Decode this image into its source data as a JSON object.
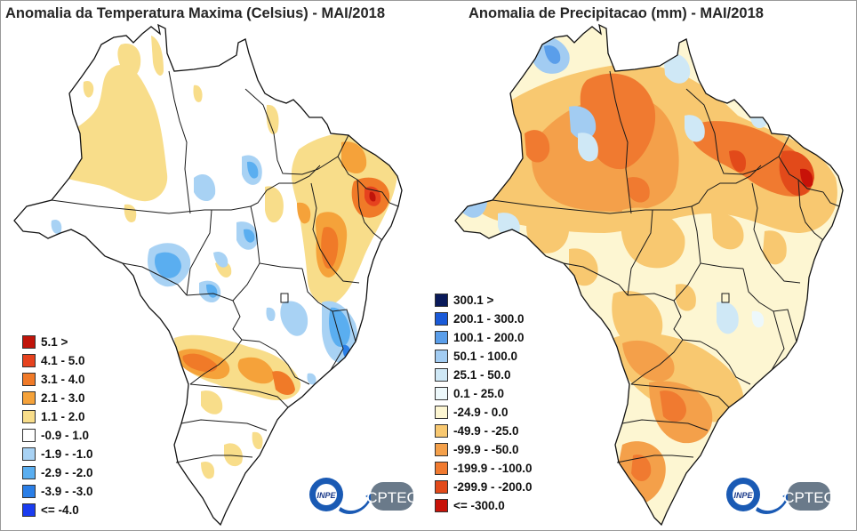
{
  "panels": [
    {
      "title": "Anomalia da Temperatura Maxima (Celsius) - MAI/2018",
      "legend": [
        {
          "label": "5.1 >",
          "color": "#c0140a"
        },
        {
          "label": "4.1 - 5.0",
          "color": "#e6421e"
        },
        {
          "label": "3.1 - 4.0",
          "color": "#f07a28"
        },
        {
          "label": "2.1 - 3.0",
          "color": "#f5a23a"
        },
        {
          "label": "1.1 - 2.0",
          "color": "#f8dd8a"
        },
        {
          "label": "-0.9 - 1.0",
          "color": "#ffffff"
        },
        {
          "label": "-1.9 - -1.0",
          "color": "#a8d2f4"
        },
        {
          "label": "-2.9 - -2.0",
          "color": "#5aaef0"
        },
        {
          "label": "-3.9 - -3.0",
          "color": "#2a7ee6"
        },
        {
          "label": "<= -4.0",
          "color": "#1a3cf0"
        }
      ]
    },
    {
      "title": "Anomalia de Precipitacao (mm) - MAI/2018",
      "legend": [
        {
          "label": "300.1 >",
          "color": "#0a1a5a"
        },
        {
          "label": "200.1 - 300.0",
          "color": "#1a5ad8"
        },
        {
          "label": "100.1 - 200.0",
          "color": "#5a9eea"
        },
        {
          "label": "50.1 - 100.0",
          "color": "#a2ccf2"
        },
        {
          "label": "25.1 - 50.0",
          "color": "#cfe8f6"
        },
        {
          "label": "0.1 - 25.0",
          "color": "#edf8fb"
        },
        {
          "label": "-24.9 - 0.0",
          "color": "#fdf6d2"
        },
        {
          "label": "-49.9 - -25.0",
          "color": "#f8c870"
        },
        {
          "label": "-99.9 - -50.0",
          "color": "#f4a04a"
        },
        {
          "label": "-199.9 - -100.0",
          "color": "#f07a30"
        },
        {
          "label": "-299.9 - -200.0",
          "color": "#e24a1a"
        },
        {
          "label": "<= -300.0",
          "color": "#c81208"
        }
      ]
    }
  ],
  "logos": {
    "inpe": "INPE",
    "cptec": "CPTEC"
  }
}
